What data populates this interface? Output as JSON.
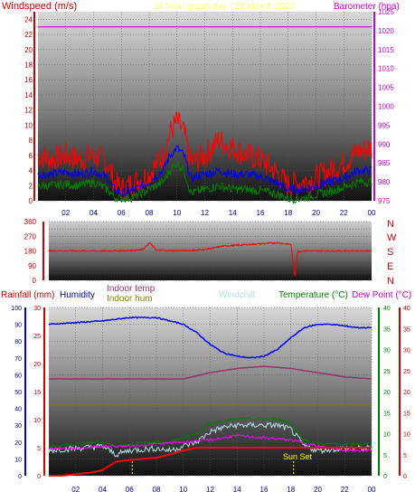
{
  "header": {
    "left_label": "Windspeed (m/s)",
    "center_title": "24 hour graph day : 25 March 2023",
    "right_label": "Barometer (hpa)"
  },
  "middle": {
    "compass": [
      "N",
      "W",
      "S",
      "E",
      "N"
    ]
  },
  "bottom": {
    "rain_label": "Rainfall (mm)",
    "humidity_label": "Humidity",
    "indoor_temp_label": "Indoor temp",
    "indoor_hum_label": "Indoor hum",
    "windchill_label": "Windchill",
    "temperature_label": "Temperature (°C)",
    "dewpoint_label": "Dew Point (°C)",
    "sunset_label": "Sun Set"
  },
  "colors": {
    "wind_gust": "#ff0000",
    "wind_avg": "#0000ff",
    "wind_min": "#008000",
    "barometer": "#cc00cc",
    "direction": "#ff0000",
    "rain": "#ff0000",
    "humidity": "#0000ff",
    "indoor_temp": "#993366",
    "indoor_hum": "#808000",
    "windchill": "#b0e0e0",
    "temperature": "#008000",
    "dewpoint": "#ff00ff",
    "sun": "#ffff00"
  },
  "chart_data": [
    {
      "type": "line",
      "name": "wind",
      "x_ticks": [
        "02",
        "04",
        "06",
        "08",
        "10",
        "12",
        "14",
        "16",
        "18",
        "20",
        "22",
        "00"
      ],
      "y_left_ticks": [
        0,
        2,
        4,
        6,
        8,
        10,
        12,
        14,
        16,
        18,
        20,
        22,
        24
      ],
      "ylim_left": [
        0,
        25
      ],
      "y_right_ticks": [
        975,
        980,
        985,
        990,
        995,
        1000,
        1005,
        1010,
        1015,
        1020,
        1025
      ],
      "ylim_right": [
        975,
        1025
      ],
      "series": [
        {
          "key": "gust",
          "x": [
            0,
            1,
            2,
            3,
            4,
            5,
            5.5,
            6,
            7,
            8,
            9,
            9.5,
            10,
            10.5,
            11,
            12,
            13,
            14,
            15,
            16,
            17,
            18,
            19,
            20,
            21,
            22,
            23,
            24
          ],
          "values": [
            6,
            5.5,
            6,
            5.5,
            6,
            5,
            2.5,
            1.5,
            2.5,
            3.5,
            6,
            9,
            10.5,
            9,
            5,
            6,
            8,
            7,
            6,
            5.5,
            4,
            2,
            2.5,
            3,
            4,
            5,
            6.5,
            7
          ]
        },
        {
          "key": "average",
          "x": [
            0,
            1,
            2,
            3,
            4,
            5,
            5.5,
            6,
            7,
            8,
            9,
            9.5,
            10,
            10.5,
            11,
            12,
            13,
            14,
            15,
            16,
            17,
            18,
            19,
            20,
            21,
            22,
            23,
            24
          ],
          "values": [
            3.5,
            3.5,
            3.8,
            3.5,
            4,
            3,
            1.5,
            1,
            1.5,
            2.5,
            4,
            6,
            7,
            6,
            3,
            3.5,
            4,
            3.5,
            3.5,
            3.2,
            2.5,
            1.5,
            1.5,
            2,
            2.5,
            3,
            4,
            4
          ]
        },
        {
          "key": "minimum",
          "x": [
            0,
            1,
            2,
            3,
            4,
            5,
            5.5,
            6,
            7,
            8,
            9,
            9.5,
            10,
            10.5,
            11,
            12,
            13,
            14,
            15,
            16,
            17,
            18,
            19,
            20,
            21,
            22,
            23,
            24
          ],
          "values": [
            2,
            2,
            2.2,
            2,
            2.5,
            1.5,
            0.5,
            0.3,
            0.5,
            1.5,
            2.5,
            4,
            5,
            4,
            1,
            1.5,
            2,
            1.5,
            1.5,
            1.3,
            1,
            0.3,
            0.3,
            0.8,
            1.2,
            1.8,
            2.5,
            2.5
          ]
        },
        {
          "key": "barometer",
          "axis": "right",
          "x": [
            0,
            24
          ],
          "values": [
            1021,
            1021
          ]
        }
      ]
    },
    {
      "type": "line",
      "name": "wind_direction",
      "y_ticks": [
        0,
        45,
        90,
        135,
        180,
        225,
        270,
        315,
        360
      ],
      "ylim": [
        0,
        360
      ],
      "series": [
        {
          "key": "direction",
          "x": [
            0,
            2,
            4,
            6,
            7,
            7.5,
            8,
            9,
            10,
            11,
            12,
            13,
            14,
            15,
            16,
            17,
            18,
            18.3,
            18.5,
            19,
            20,
            22,
            24
          ],
          "values": [
            180,
            180,
            180,
            182,
            190,
            230,
            185,
            182,
            182,
            185,
            195,
            210,
            215,
            220,
            225,
            230,
            220,
            20,
            175,
            180,
            180,
            180,
            180
          ]
        }
      ]
    },
    {
      "type": "line",
      "name": "temperature_humidity_rain",
      "y_rain_ticks": [
        0,
        5,
        10,
        15,
        20,
        25,
        30
      ],
      "ylim_rain": [
        0,
        30
      ],
      "y_humidity_ticks": [
        0,
        10,
        20,
        30,
        40,
        50,
        60,
        70,
        80,
        90,
        100
      ],
      "ylim_humidity": [
        0,
        100
      ],
      "y_temp_ticks": [
        0,
        5,
        10,
        15,
        20,
        25,
        30,
        35,
        40
      ],
      "ylim_temp": [
        0,
        40
      ],
      "series": [
        {
          "key": "humidity",
          "axis": "humidity",
          "x": [
            0,
            2,
            4,
            5,
            6,
            8,
            9,
            10,
            11,
            12,
            13,
            14,
            15,
            16,
            17,
            18,
            19,
            20,
            21,
            22,
            23,
            24
          ],
          "values": [
            90,
            91,
            92,
            93,
            94,
            94,
            92,
            90,
            85,
            78,
            73,
            71,
            70,
            71,
            75,
            82,
            88,
            90,
            90,
            89,
            88,
            88
          ]
        },
        {
          "key": "indoor_temp",
          "axis": "temp",
          "x": [
            0,
            4,
            8,
            10,
            12,
            14,
            16,
            18,
            20,
            22,
            24
          ],
          "values": [
            23,
            23,
            23,
            23,
            24.5,
            25.5,
            26,
            25.5,
            24.5,
            23.5,
            23
          ]
        },
        {
          "key": "indoor_hum",
          "axis": "temp",
          "x": [
            0,
            24
          ],
          "values": [
            17,
            17
          ]
        },
        {
          "key": "windchill",
          "axis": "temp",
          "x": [
            0,
            2,
            4,
            5,
            6,
            8,
            9,
            10,
            11,
            12,
            13,
            14,
            15,
            16,
            17,
            18,
            19,
            20,
            22,
            24
          ],
          "values": [
            6,
            6.5,
            7,
            5,
            6,
            6.5,
            6,
            7,
            8,
            10.5,
            11.5,
            12,
            12,
            12,
            12,
            11,
            7,
            6,
            6.5,
            6.5
          ]
        },
        {
          "key": "temperature",
          "axis": "temp",
          "x": [
            0,
            2,
            4,
            5,
            6,
            8,
            9,
            10,
            11,
            12,
            13,
            14,
            15,
            16,
            17,
            18,
            19,
            20,
            22,
            24
          ],
          "values": [
            7,
            7.5,
            8,
            7,
            7.5,
            8,
            8,
            9,
            10,
            12.5,
            13,
            13.5,
            13.5,
            13.5,
            13.5,
            12.5,
            8.5,
            7.5,
            7.5,
            7.5
          ]
        },
        {
          "key": "dewpoint",
          "axis": "temp",
          "x": [
            0,
            2,
            4,
            6,
            8,
            10,
            12,
            14,
            16,
            18,
            20,
            22,
            24
          ],
          "values": [
            6.5,
            6.5,
            7,
            7,
            7.5,
            8,
            8.5,
            9.5,
            9,
            8.5,
            7,
            6,
            6
          ]
        },
        {
          "key": "rainfall",
          "axis": "rain",
          "x": [
            0,
            1,
            2,
            3,
            4,
            5,
            6,
            7,
            8,
            9,
            10,
            11,
            12,
            14,
            18,
            20,
            22,
            24
          ],
          "values": [
            0,
            0,
            0.3,
            0.5,
            1,
            2.5,
            2.8,
            3,
            3.2,
            3.8,
            4.5,
            5,
            5,
            5,
            5,
            5,
            5,
            5
          ]
        }
      ],
      "sun_lines": [
        6.2,
        18.2
      ]
    }
  ]
}
